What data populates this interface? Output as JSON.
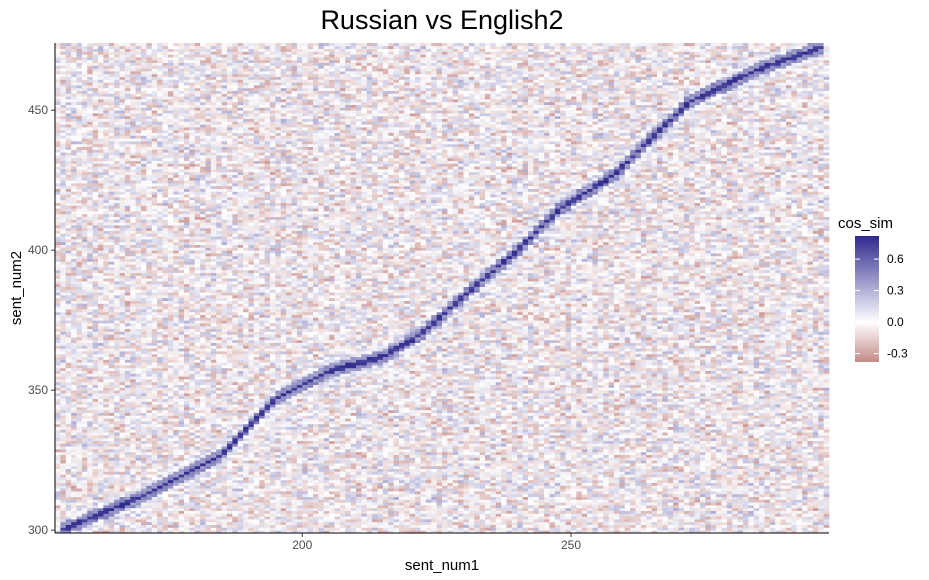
{
  "chart_data": {
    "type": "heatmap",
    "title": "Russian vs English2",
    "xlabel": "sent_num1",
    "ylabel": "sent_num2",
    "xlim": [
      154,
      298
    ],
    "ylim": [
      299,
      474
    ],
    "x_ticks": [
      200,
      250
    ],
    "x_tick_labels": [
      "200",
      "250"
    ],
    "y_ticks": [
      300,
      350,
      400,
      450
    ],
    "y_tick_labels": [
      "300",
      "350",
      "400",
      "450"
    ],
    "value_name": "cos_sim",
    "color_scale": {
      "low": "#c48a86",
      "mid": "#ffffff",
      "high": "#2e2a8c",
      "min": -0.38,
      "midpoint": 0.0,
      "max": 0.82
    },
    "legend": {
      "title": "cos_sim",
      "breaks": [
        0.6,
        0.3,
        0.0,
        -0.3
      ],
      "labels": [
        "0.6",
        "0.3",
        "0.0",
        "-0.3"
      ],
      "position": "right"
    },
    "alignment_diagonal": [
      {
        "x": 155,
        "y": 300
      },
      {
        "x": 170,
        "y": 312
      },
      {
        "x": 185,
        "y": 327
      },
      {
        "x": 195,
        "y": 347
      },
      {
        "x": 205,
        "y": 357
      },
      {
        "x": 215,
        "y": 362
      },
      {
        "x": 222,
        "y": 370
      },
      {
        "x": 232,
        "y": 387
      },
      {
        "x": 240,
        "y": 400
      },
      {
        "x": 248,
        "y": 415
      },
      {
        "x": 258,
        "y": 427
      },
      {
        "x": 266,
        "y": 442
      },
      {
        "x": 272,
        "y": 453
      },
      {
        "x": 284,
        "y": 464
      },
      {
        "x": 297,
        "y": 473
      }
    ],
    "grid": false
  }
}
